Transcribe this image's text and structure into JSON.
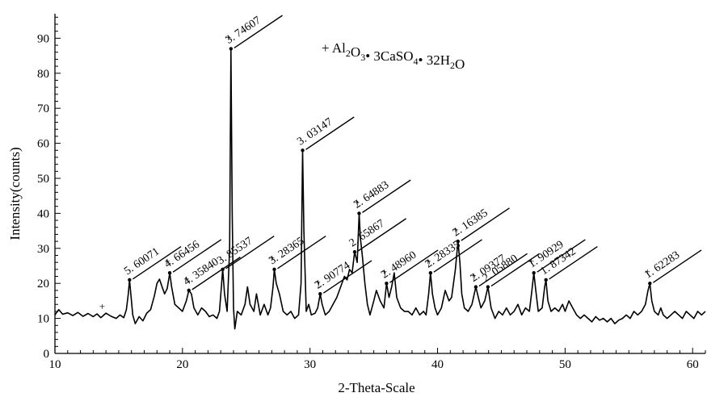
{
  "chart_data": {
    "type": "line",
    "xlabel": "2-Theta-Scale",
    "ylabel": "Intensity(counts)",
    "xlim": [
      10,
      61
    ],
    "ylim": [
      0,
      97
    ],
    "x_ticks": [
      10,
      20,
      30,
      40,
      50,
      60
    ],
    "y_ticks": [
      0,
      10,
      20,
      30,
      40,
      50,
      60,
      70,
      80,
      90
    ],
    "grid": false,
    "legend": {
      "marker": "+",
      "parts": [
        {
          "t": "Al",
          "s": false
        },
        {
          "t": "2",
          "s": true
        },
        {
          "t": "O",
          "s": false
        },
        {
          "t": "3",
          "s": true
        },
        {
          "t": "• 3CaSO",
          "s": false
        },
        {
          "t": "4",
          "s": true
        },
        {
          "t": "• 32H",
          "s": false
        },
        {
          "t": "2",
          "s": true
        },
        {
          "t": "O",
          "s": false
        }
      ],
      "placement": "top-center"
    },
    "trace": [
      [
        10.0,
        11.0
      ],
      [
        10.3,
        12.5
      ],
      [
        10.6,
        11.2
      ],
      [
        11.0,
        11.6
      ],
      [
        11.4,
        10.8
      ],
      [
        11.8,
        11.7
      ],
      [
        12.2,
        10.6
      ],
      [
        12.6,
        11.4
      ],
      [
        13.0,
        10.5
      ],
      [
        13.3,
        11.3
      ],
      [
        13.6,
        10.2
      ],
      [
        14.0,
        11.5
      ],
      [
        14.4,
        10.6
      ],
      [
        14.8,
        10.0
      ],
      [
        15.1,
        11.0
      ],
      [
        15.4,
        10.2
      ],
      [
        15.6,
        12.5
      ],
      [
        15.75,
        17.0
      ],
      [
        15.85,
        21.0
      ],
      [
        15.95,
        17.0
      ],
      [
        16.1,
        11.0
      ],
      [
        16.3,
        8.5
      ],
      [
        16.6,
        10.5
      ],
      [
        16.9,
        9.3
      ],
      [
        17.2,
        11.5
      ],
      [
        17.5,
        12.5
      ],
      [
        17.8,
        16.5
      ],
      [
        18.0,
        20.0
      ],
      [
        18.2,
        21.2
      ],
      [
        18.4,
        19.0
      ],
      [
        18.6,
        17.0
      ],
      [
        18.8,
        18.5
      ],
      [
        19.0,
        23.0
      ],
      [
        19.15,
        19.0
      ],
      [
        19.4,
        14.0
      ],
      [
        19.7,
        13.0
      ],
      [
        20.0,
        12.0
      ],
      [
        20.3,
        15.0
      ],
      [
        20.5,
        18.0
      ],
      [
        20.7,
        17.0
      ],
      [
        20.9,
        13.0
      ],
      [
        21.2,
        11.0
      ],
      [
        21.5,
        13.0
      ],
      [
        21.8,
        12.0
      ],
      [
        22.1,
        10.5
      ],
      [
        22.4,
        11.0
      ],
      [
        22.7,
        10.0
      ],
      [
        22.9,
        12.0
      ],
      [
        23.05,
        19.0
      ],
      [
        23.15,
        24.0
      ],
      [
        23.3,
        17.0
      ],
      [
        23.5,
        12.0
      ],
      [
        23.7,
        30.0
      ],
      [
        23.8,
        87.0
      ],
      [
        23.9,
        40.0
      ],
      [
        24.0,
        13.0
      ],
      [
        24.1,
        7.0
      ],
      [
        24.3,
        12.0
      ],
      [
        24.6,
        11.0
      ],
      [
        24.9,
        14.0
      ],
      [
        25.1,
        19.0
      ],
      [
        25.3,
        14.0
      ],
      [
        25.6,
        12.0
      ],
      [
        25.8,
        17.0
      ],
      [
        26.1,
        11.0
      ],
      [
        26.4,
        14.0
      ],
      [
        26.7,
        11.0
      ],
      [
        26.9,
        13.0
      ],
      [
        27.1,
        19.0
      ],
      [
        27.2,
        24.0
      ],
      [
        27.35,
        20.0
      ],
      [
        27.6,
        17.0
      ],
      [
        27.9,
        12.0
      ],
      [
        28.2,
        11.0
      ],
      [
        28.5,
        12.0
      ],
      [
        28.8,
        10.0
      ],
      [
        29.1,
        11.0
      ],
      [
        29.3,
        20.0
      ],
      [
        29.42,
        58.0
      ],
      [
        29.52,
        35.0
      ],
      [
        29.7,
        12.0
      ],
      [
        29.9,
        14.0
      ],
      [
        30.1,
        11.0
      ],
      [
        30.4,
        11.5
      ],
      [
        30.6,
        13.0
      ],
      [
        30.8,
        17.0
      ],
      [
        30.95,
        14.0
      ],
      [
        31.2,
        11.0
      ],
      [
        31.5,
        12.0
      ],
      [
        31.8,
        14.0
      ],
      [
        32.1,
        16.0
      ],
      [
        32.4,
        19.0
      ],
      [
        32.7,
        22.0
      ],
      [
        32.9,
        21.0
      ],
      [
        33.1,
        24.0
      ],
      [
        33.3,
        23.0
      ],
      [
        33.5,
        29.0
      ],
      [
        33.7,
        26.0
      ],
      [
        33.85,
        40.0
      ],
      [
        33.95,
        33.0
      ],
      [
        34.1,
        28.0
      ],
      [
        34.3,
        20.0
      ],
      [
        34.5,
        14.0
      ],
      [
        34.7,
        11.0
      ],
      [
        35.0,
        15.0
      ],
      [
        35.2,
        18.0
      ],
      [
        35.5,
        15.0
      ],
      [
        35.8,
        13.0
      ],
      [
        36.0,
        20.0
      ],
      [
        36.2,
        16.0
      ],
      [
        36.4,
        19.0
      ],
      [
        36.6,
        23.0
      ],
      [
        36.8,
        16.0
      ],
      [
        37.1,
        13.0
      ],
      [
        37.4,
        12.0
      ],
      [
        37.7,
        12.0
      ],
      [
        38.0,
        11.0
      ],
      [
        38.3,
        13.0
      ],
      [
        38.6,
        11.0
      ],
      [
        38.9,
        12.0
      ],
      [
        39.1,
        11.0
      ],
      [
        39.3,
        17.0
      ],
      [
        39.45,
        23.0
      ],
      [
        39.6,
        17.0
      ],
      [
        39.8,
        13.0
      ],
      [
        40.0,
        11.0
      ],
      [
        40.3,
        13.0
      ],
      [
        40.6,
        18.0
      ],
      [
        40.9,
        15.0
      ],
      [
        41.1,
        16.0
      ],
      [
        41.4,
        24.0
      ],
      [
        41.6,
        32.0
      ],
      [
        41.75,
        26.0
      ],
      [
        41.9,
        17.0
      ],
      [
        42.1,
        13.0
      ],
      [
        42.4,
        12.0
      ],
      [
        42.7,
        14.0
      ],
      [
        43.0,
        19.0
      ],
      [
        43.2,
        16.0
      ],
      [
        43.4,
        13.0
      ],
      [
        43.7,
        15.0
      ],
      [
        43.95,
        19.0
      ],
      [
        44.2,
        13.0
      ],
      [
        44.5,
        10.0
      ],
      [
        44.8,
        12.0
      ],
      [
        45.1,
        11.0
      ],
      [
        45.4,
        13.0
      ],
      [
        45.7,
        11.0
      ],
      [
        46.0,
        12.0
      ],
      [
        46.3,
        14.0
      ],
      [
        46.6,
        11.0
      ],
      [
        46.9,
        13.0
      ],
      [
        47.2,
        12.0
      ],
      [
        47.4,
        18.0
      ],
      [
        47.55,
        23.0
      ],
      [
        47.7,
        18.0
      ],
      [
        47.9,
        12.0
      ],
      [
        48.2,
        13.0
      ],
      [
        48.4,
        19.0
      ],
      [
        48.5,
        21.0
      ],
      [
        48.65,
        15.0
      ],
      [
        48.9,
        12.0
      ],
      [
        49.2,
        13.0
      ],
      [
        49.5,
        12.0
      ],
      [
        49.8,
        14.0
      ],
      [
        50.0,
        12.0
      ],
      [
        50.3,
        15.0
      ],
      [
        50.6,
        13.0
      ],
      [
        50.9,
        11.0
      ],
      [
        51.2,
        10.0
      ],
      [
        51.5,
        11.0
      ],
      [
        51.8,
        10.0
      ],
      [
        52.1,
        9.0
      ],
      [
        52.4,
        10.5
      ],
      [
        52.7,
        9.5
      ],
      [
        53.0,
        10.0
      ],
      [
        53.3,
        9.0
      ],
      [
        53.6,
        10.0
      ],
      [
        53.9,
        8.5
      ],
      [
        54.2,
        9.5
      ],
      [
        54.5,
        10.0
      ],
      [
        54.8,
        11.0
      ],
      [
        55.1,
        10.0
      ],
      [
        55.4,
        12.0
      ],
      [
        55.7,
        11.0
      ],
      [
        56.0,
        12.0
      ],
      [
        56.3,
        14.0
      ],
      [
        56.5,
        18.0
      ],
      [
        56.65,
        20.0
      ],
      [
        56.8,
        15.0
      ],
      [
        57.0,
        12.0
      ],
      [
        57.3,
        11.0
      ],
      [
        57.5,
        13.0
      ],
      [
        57.7,
        11.0
      ],
      [
        58.0,
        10.0
      ],
      [
        58.3,
        11.0
      ],
      [
        58.6,
        12.0
      ],
      [
        58.9,
        11.0
      ],
      [
        59.2,
        10.0
      ],
      [
        59.5,
        12.0
      ],
      [
        59.8,
        11.0
      ],
      [
        60.1,
        10.0
      ],
      [
        60.4,
        12.0
      ],
      [
        60.7,
        11.0
      ],
      [
        61.0,
        12.0
      ]
    ],
    "peaks": [
      {
        "x": 15.85,
        "y": 21.0,
        "label": "5. 60071",
        "plus": false
      },
      {
        "x": 19.0,
        "y": 23.0,
        "label": "4. 66456",
        "plus": true
      },
      {
        "x": 20.5,
        "y": 18.0,
        "label": "4. 35840",
        "plus": true
      },
      {
        "x": 23.15,
        "y": 24.0,
        "label": "3. 85537",
        "plus": false
      },
      {
        "x": 23.8,
        "y": 87.0,
        "label": "3. 74607",
        "plus": true
      },
      {
        "x": 27.2,
        "y": 24.0,
        "label": "3. 28365",
        "plus": true
      },
      {
        "x": 29.42,
        "y": 58.0,
        "label": "3. 03147",
        "plus": false
      },
      {
        "x": 30.8,
        "y": 17.0,
        "label": "2. 90774",
        "plus": true
      },
      {
        "x": 33.5,
        "y": 29.0,
        "label": "2. 65867",
        "plus": false
      },
      {
        "x": 33.85,
        "y": 40.0,
        "label": "2. 64883",
        "plus": true
      },
      {
        "x": 36.0,
        "y": 20.0,
        "label": "2. 48960",
        "plus": true
      },
      {
        "x": 39.45,
        "y": 23.0,
        "label": "2. 28335",
        "plus": true
      },
      {
        "x": 41.6,
        "y": 32.0,
        "label": "2. 16385",
        "plus": true
      },
      {
        "x": 43.0,
        "y": 19.0,
        "label": "2. 09377",
        "plus": true
      },
      {
        "x": 43.95,
        "y": 19.0,
        "label": "2. 05880",
        "plus": false
      },
      {
        "x": 47.55,
        "y": 23.0,
        "label": "1. 90929",
        "plus": true
      },
      {
        "x": 48.5,
        "y": 21.0,
        "label": "1. 87342",
        "plus": false
      },
      {
        "x": 56.65,
        "y": 20.0,
        "label": "1. 62283",
        "plus": true
      }
    ],
    "extra_markers": [
      {
        "x": 13.7,
        "y": 12.0
      }
    ]
  }
}
